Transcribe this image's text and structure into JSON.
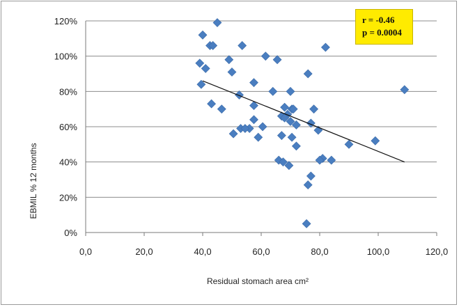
{
  "chart_data": {
    "type": "scatter",
    "xlabel": "Residual stomach area cm²",
    "ylabel": "EBMIL % 12 months",
    "xlim": [
      0,
      120
    ],
    "ylim": [
      0,
      120
    ],
    "x_ticks": [
      "0,0",
      "20,0",
      "40,0",
      "60,0",
      "80,0",
      "100,0",
      "120,0"
    ],
    "y_ticks": [
      "0%",
      "20%",
      "40%",
      "60%",
      "80%",
      "100%",
      "120%"
    ],
    "grid": "horizontal",
    "marker_color": "#4a7ec0",
    "trendline": {
      "x": [
        40,
        109
      ],
      "y": [
        86,
        40
      ]
    },
    "annotation": {
      "line1": "r = -0.46",
      "line2": "p = 0.0004",
      "background": "#ffeb00"
    },
    "points": [
      {
        "x": 45,
        "y": 119
      },
      {
        "x": 40,
        "y": 112
      },
      {
        "x": 42.5,
        "y": 106
      },
      {
        "x": 43.5,
        "y": 106
      },
      {
        "x": 53.5,
        "y": 106
      },
      {
        "x": 82,
        "y": 105
      },
      {
        "x": 61.5,
        "y": 100
      },
      {
        "x": 65.5,
        "y": 98
      },
      {
        "x": 49,
        "y": 98
      },
      {
        "x": 39,
        "y": 96
      },
      {
        "x": 41,
        "y": 93
      },
      {
        "x": 50,
        "y": 91
      },
      {
        "x": 76,
        "y": 90
      },
      {
        "x": 57.5,
        "y": 85
      },
      {
        "x": 39.5,
        "y": 84
      },
      {
        "x": 70,
        "y": 80
      },
      {
        "x": 64,
        "y": 80
      },
      {
        "x": 109,
        "y": 81
      },
      {
        "x": 52.5,
        "y": 78
      },
      {
        "x": 43,
        "y": 73
      },
      {
        "x": 57.5,
        "y": 72
      },
      {
        "x": 46.5,
        "y": 70
      },
      {
        "x": 68,
        "y": 71
      },
      {
        "x": 70.5,
        "y": 70
      },
      {
        "x": 71,
        "y": 70
      },
      {
        "x": 78,
        "y": 70
      },
      {
        "x": 67,
        "y": 66
      },
      {
        "x": 69,
        "y": 67
      },
      {
        "x": 68,
        "y": 65
      },
      {
        "x": 57.5,
        "y": 64
      },
      {
        "x": 70,
        "y": 63
      },
      {
        "x": 72,
        "y": 61
      },
      {
        "x": 77,
        "y": 62
      },
      {
        "x": 60.5,
        "y": 60
      },
      {
        "x": 56,
        "y": 59
      },
      {
        "x": 53,
        "y": 59
      },
      {
        "x": 54.5,
        "y": 59
      },
      {
        "x": 79.5,
        "y": 58
      },
      {
        "x": 50.5,
        "y": 56
      },
      {
        "x": 59,
        "y": 54
      },
      {
        "x": 67,
        "y": 55
      },
      {
        "x": 70.5,
        "y": 54
      },
      {
        "x": 99,
        "y": 52
      },
      {
        "x": 72,
        "y": 49
      },
      {
        "x": 90,
        "y": 50
      },
      {
        "x": 81,
        "y": 42
      },
      {
        "x": 80,
        "y": 41
      },
      {
        "x": 84,
        "y": 41
      },
      {
        "x": 66,
        "y": 41
      },
      {
        "x": 67.5,
        "y": 40
      },
      {
        "x": 69.5,
        "y": 38
      },
      {
        "x": 77,
        "y": 32
      },
      {
        "x": 76,
        "y": 27
      },
      {
        "x": 75.5,
        "y": 5
      }
    ]
  }
}
